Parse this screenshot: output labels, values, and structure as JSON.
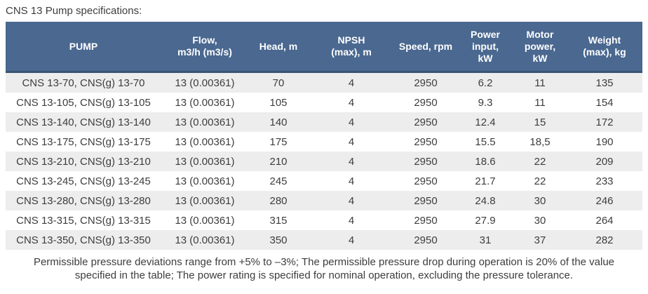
{
  "title": "CNS 13 Pump specifications:",
  "table": {
    "columns": [
      "PUMP",
      "Flow,\nm3/h (m3/s)",
      "Head, m",
      "NPSH\n(max), m",
      "Speed, rpm",
      "Power\ninput,\nkW",
      "Motor\npower,\nkW",
      "Weight\n(max), kg"
    ],
    "rows": [
      {
        "cells": [
          "CNS 13-70, CNS(g) 13-70",
          "13 (0.00361)",
          "70",
          "4",
          "2950",
          "6.2",
          "11",
          "135"
        ]
      },
      {
        "cells": [
          "CNS 13-105, CNS(g) 13-105",
          "13 (0.00361)",
          "105",
          "4",
          "2950",
          "9.3",
          "11",
          "154"
        ]
      },
      {
        "cells": [
          "CNS 13-140, CNS(g) 13-140",
          "13 (0.00361)",
          "140",
          "4",
          "2950",
          "12.4",
          "15",
          "172"
        ]
      },
      {
        "cells": [
          "CNS 13-175, CNS(g) 13-175",
          "13 (0.00361)",
          "175",
          "4",
          "2950",
          "15.5",
          "18,5",
          "190"
        ]
      },
      {
        "cells": [
          "CNS 13-210, CNS(g) 13-210",
          "13 (0.00361)",
          "210",
          "4",
          "2950",
          "18.6",
          "22",
          "209"
        ]
      },
      {
        "cells": [
          "CNS 13-245, CNS(g) 13-245",
          "13 (0.00361)",
          "245",
          "4",
          "2950",
          "21.7",
          "22",
          "233"
        ]
      },
      {
        "cells": [
          "CNS 13-280, CNS(g) 13-280",
          "13 (0.00361)",
          "280",
          "4",
          "2950",
          "24.8",
          "30",
          "246"
        ]
      },
      {
        "cells": [
          "CNS 13-315, CNS(g) 13-315",
          "13 (0.00361)",
          "315",
          "4",
          "2950",
          "27.9",
          "30",
          "264"
        ]
      },
      {
        "cells": [
          "CNS 13-350, CNS(g) 13-350",
          "13 (0.00361)",
          "350",
          "4",
          "2950",
          "31",
          "37",
          "282"
        ]
      }
    ]
  },
  "footnote": "Permissible pressure deviations range from +5% to –3%; The permissible pressure drop during operation is 20% of the value\nspecified in the table; The power rating is specified for nominal operation, excluding the pressure tolerance.",
  "colors": {
    "header_bg": "#4a6890",
    "header_border": "#3a5674",
    "row_alt_bg": "#ededee",
    "text": "#3d3d3d",
    "header_text": "#ffffff"
  }
}
